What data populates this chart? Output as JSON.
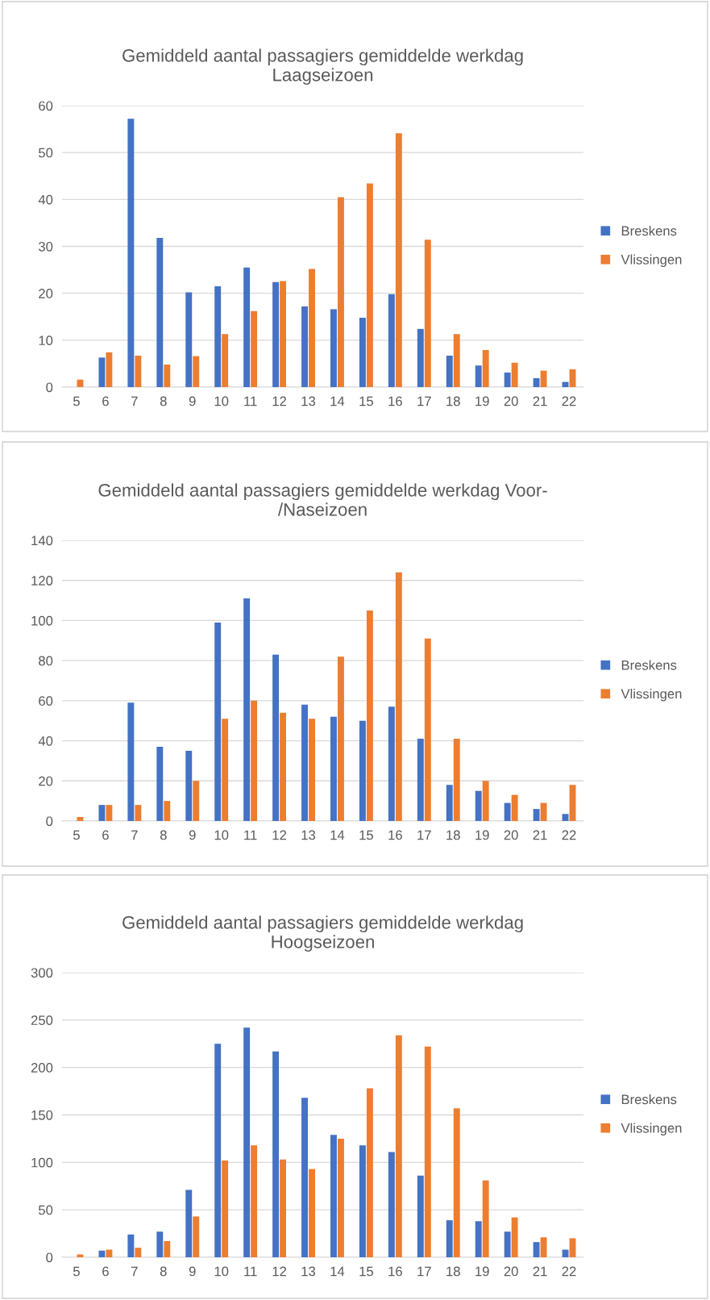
{
  "chart_data": [
    {
      "type": "bar",
      "title": "Gemiddeld aantal passagiers gemiddelde werkdag\nLaagseizoen",
      "categories": [
        "5",
        "6",
        "7",
        "8",
        "9",
        "10",
        "11",
        "12",
        "13",
        "14",
        "15",
        "16",
        "17",
        "18",
        "19",
        "20",
        "21",
        "22"
      ],
      "series": [
        {
          "name": "Breskens",
          "color": "#4472c4",
          "values": [
            0,
            6.3,
            57.2,
            31.8,
            20.2,
            21.5,
            25.5,
            22.4,
            17.2,
            16.6,
            14.8,
            19.8,
            12.4,
            6.7,
            4.6,
            3.1,
            1.9,
            1.1
          ]
        },
        {
          "name": "Vlissingen",
          "color": "#ed7d31",
          "values": [
            1.6,
            7.4,
            6.7,
            4.8,
            6.6,
            11.3,
            16.2,
            22.6,
            25.2,
            40.5,
            43.4,
            54.1,
            31.4,
            11.3,
            7.9,
            5.2,
            3.5,
            3.8
          ]
        }
      ],
      "ylim": [
        0,
        60
      ],
      "yticks": [
        0,
        10,
        20,
        30,
        40,
        50,
        60
      ],
      "grid": "y",
      "legend": "right"
    },
    {
      "type": "bar",
      "title": "Gemiddeld aantal passagiers gemiddelde werkdag Voor-\n/Naseizoen",
      "categories": [
        "5",
        "6",
        "7",
        "8",
        "9",
        "10",
        "11",
        "12",
        "13",
        "14",
        "15",
        "16",
        "17",
        "18",
        "19",
        "20",
        "21",
        "22"
      ],
      "series": [
        {
          "name": "Breskens",
          "color": "#4472c4",
          "values": [
            0,
            8,
            59,
            37,
            35,
            99,
            111,
            83,
            58,
            52,
            50,
            57,
            41,
            18,
            15,
            9,
            6,
            3.5
          ]
        },
        {
          "name": "Vlissingen",
          "color": "#ed7d31",
          "values": [
            2,
            8,
            8,
            10,
            20,
            51,
            60,
            54,
            51,
            82,
            105,
            124,
            91,
            41,
            20,
            13,
            9,
            18
          ]
        }
      ],
      "ylim": [
        0,
        140
      ],
      "yticks": [
        0,
        20,
        40,
        60,
        80,
        100,
        120,
        140
      ],
      "grid": "y",
      "legend": "right"
    },
    {
      "type": "bar",
      "title": "Gemiddeld aantal passagiers gemiddelde werkdag\nHoogseizoen",
      "categories": [
        "5",
        "6",
        "7",
        "8",
        "9",
        "10",
        "11",
        "12",
        "13",
        "14",
        "15",
        "16",
        "17",
        "18",
        "19",
        "20",
        "21",
        "22"
      ],
      "series": [
        {
          "name": "Breskens",
          "color": "#4472c4",
          "values": [
            0,
            7,
            24,
            27,
            71,
            225,
            242,
            217,
            168,
            129,
            118,
            111,
            86,
            39,
            38,
            27,
            16,
            8
          ]
        },
        {
          "name": "Vlissingen",
          "color": "#ed7d31",
          "values": [
            3,
            8,
            10,
            17,
            43,
            102,
            118,
            103,
            93,
            125,
            178,
            234,
            222,
            157,
            81,
            42,
            21,
            20
          ]
        }
      ],
      "ylim": [
        0,
        300
      ],
      "yticks": [
        0,
        50,
        100,
        150,
        200,
        250,
        300
      ],
      "grid": "y",
      "legend": "right"
    }
  ]
}
